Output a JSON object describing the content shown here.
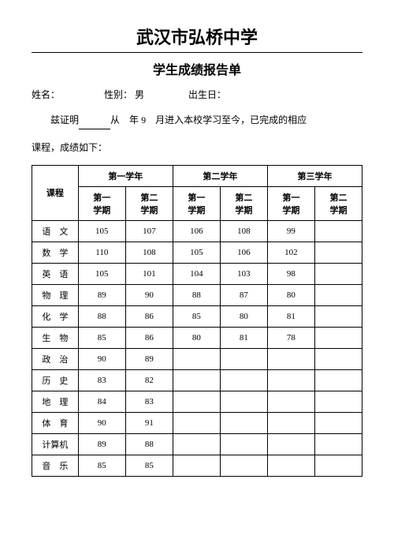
{
  "header": {
    "school_name": "武汉市弘桥中学",
    "report_title": "学生成绩报告单"
  },
  "info": {
    "name_label": "姓名：",
    "gender_label": "性别：",
    "gender_value": "男",
    "birth_label": "出生日：",
    "cert_prefix": "兹证明",
    "cert_from": "从",
    "cert_year": "年",
    "cert_month": "9",
    "cert_suffix": "月进入本校学习至今，已完成的相应",
    "course_note": "课程，成绩如下："
  },
  "table": {
    "header": {
      "course": "课程",
      "year1": "第一学年",
      "year2": "第二学年",
      "year3": "第三学年",
      "sem1": "第一学期",
      "sem2": "第二学期"
    },
    "rows": [
      {
        "subject": "语　文",
        "scores": [
          "105",
          "107",
          "106",
          "108",
          "99",
          ""
        ]
      },
      {
        "subject": "数　学",
        "scores": [
          "110",
          "108",
          "105",
          "106",
          "102",
          ""
        ]
      },
      {
        "subject": "英　语",
        "scores": [
          "105",
          "101",
          "104",
          "103",
          "98",
          ""
        ]
      },
      {
        "subject": "物　理",
        "scores": [
          "89",
          "90",
          "88",
          "87",
          "80",
          ""
        ]
      },
      {
        "subject": "化　学",
        "scores": [
          "88",
          "86",
          "85",
          "80",
          "81",
          ""
        ]
      },
      {
        "subject": "生　物",
        "scores": [
          "85",
          "86",
          "80",
          "81",
          "78",
          ""
        ]
      },
      {
        "subject": "政　治",
        "scores": [
          "90",
          "89",
          "",
          "",
          "",
          ""
        ]
      },
      {
        "subject": "历　史",
        "scores": [
          "83",
          "82",
          "",
          "",
          "",
          ""
        ]
      },
      {
        "subject": "地　理",
        "scores": [
          "84",
          "83",
          "",
          "",
          "",
          ""
        ]
      },
      {
        "subject": "体　育",
        "scores": [
          "90",
          "91",
          "",
          "",
          "",
          ""
        ]
      },
      {
        "subject": "计算机",
        "scores": [
          "89",
          "88",
          "",
          "",
          "",
          ""
        ]
      },
      {
        "subject": "音　乐",
        "scores": [
          "85",
          "85",
          "",
          "",
          "",
          ""
        ]
      }
    ]
  },
  "style": {
    "background_color": "#ffffff",
    "text_color": "#000000",
    "border_color": "#000000",
    "school_fontsize": 22,
    "title_fontsize": 16,
    "body_fontsize": 12,
    "table_fontsize": 11
  }
}
